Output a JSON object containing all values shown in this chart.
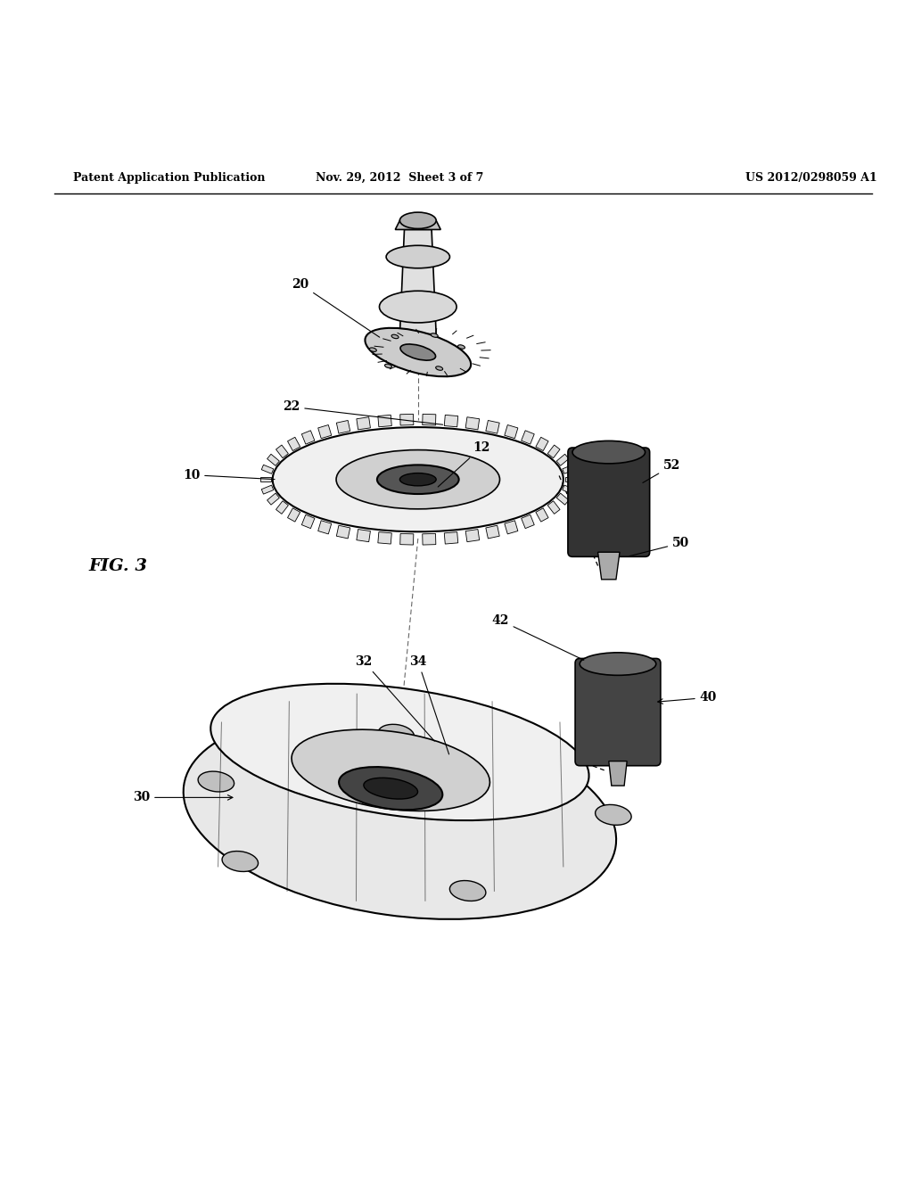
{
  "background_color": "#ffffff",
  "fig_width": 10.24,
  "fig_height": 13.2,
  "dpi": 100,
  "header_left": "Patent Application Publication",
  "header_center": "Nov. 29, 2012  Sheet 3 of 7",
  "header_right": "US 2012/0298059 A1",
  "fig_label": "FIG. 3"
}
